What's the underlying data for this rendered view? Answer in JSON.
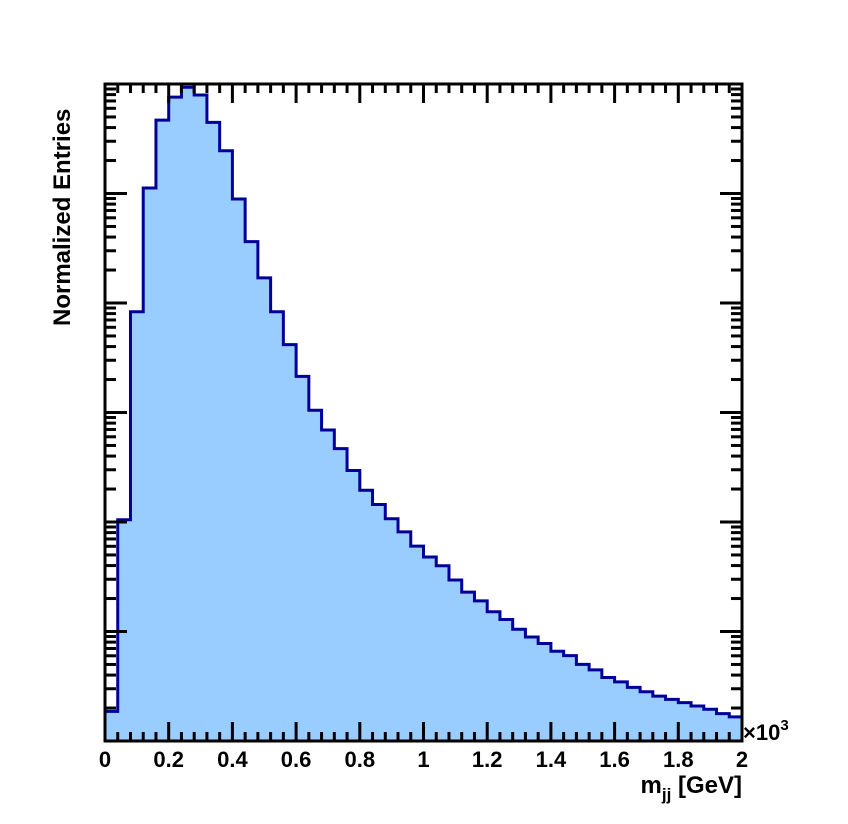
{
  "chart_data": {
    "type": "histogram",
    "x_range": [
      0,
      2000
    ],
    "x_unit_multiplier_label": "×10",
    "x_unit_exponent": "3",
    "x_ticks": [
      "0",
      "0.2",
      "0.4",
      "0.6",
      "0.8",
      "1",
      "1.2",
      "1.4",
      "1.6",
      "1.8",
      "2"
    ],
    "x_tick_values": [
      0,
      0.2,
      0.4,
      0.6,
      0.8,
      1.0,
      1.2,
      1.4,
      1.6,
      1.8,
      2.0
    ],
    "xlabel_main": "m",
    "xlabel_sub": "jj",
    "xlabel_unit": " [GeV]",
    "ylabel": "Normalized Entries",
    "y_scale": "log",
    "y_range_decades": [
      0,
      6
    ],
    "bin_width": 40,
    "bin_edges_start": 0,
    "values_log10": [
      0.27,
      2.02,
      3.92,
      5.05,
      5.67,
      5.88,
      5.97,
      5.9,
      5.65,
      5.39,
      4.95,
      4.56,
      4.23,
      3.92,
      3.62,
      3.33,
      3.02,
      2.84,
      2.67,
      2.47,
      2.29,
      2.16,
      2.03,
      1.91,
      1.78,
      1.68,
      1.6,
      1.47,
      1.36,
      1.28,
      1.18,
      1.11,
      1.02,
      0.95,
      0.89,
      0.82,
      0.78,
      0.7,
      0.65,
      0.58,
      0.54,
      0.49,
      0.45,
      0.41,
      0.38,
      0.35,
      0.32,
      0.29,
      0.25,
      0.22
    ],
    "fill_color": "#99ccff",
    "line_color": "#000099"
  }
}
